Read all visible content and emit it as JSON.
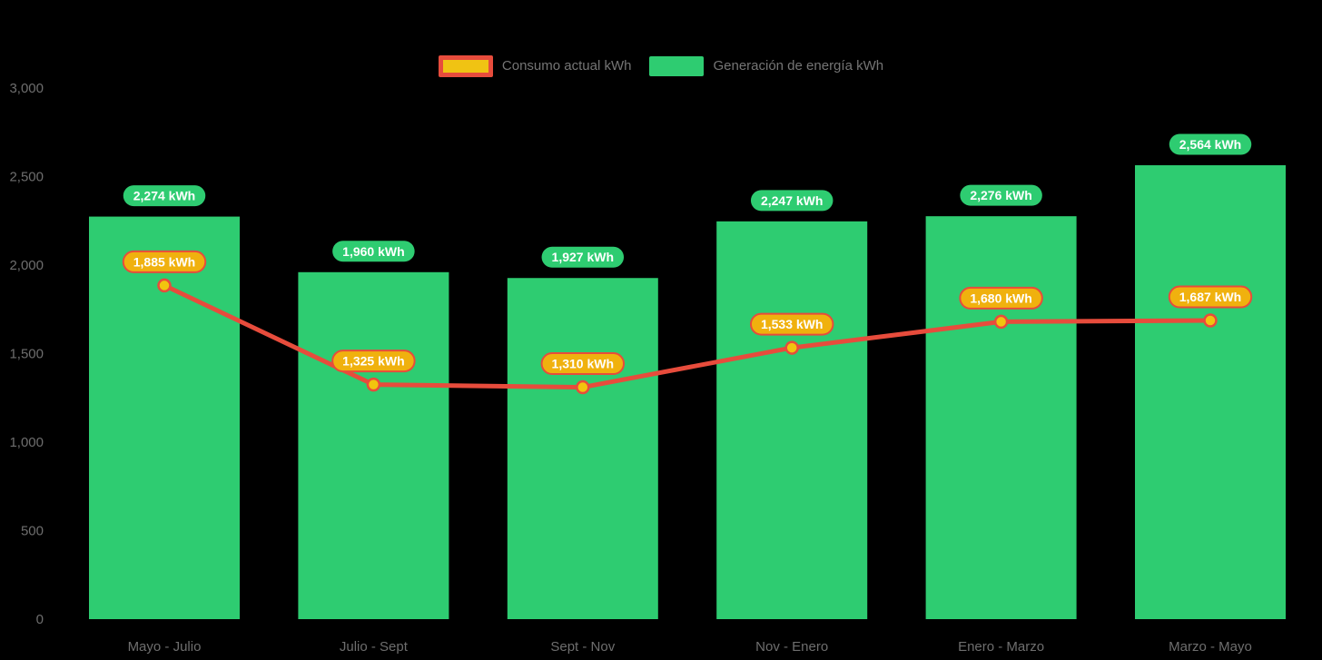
{
  "legend": {
    "items": [
      {
        "label": "Consumo actual kWh",
        "series_type": "line",
        "swatch_fill": "#F0C313",
        "swatch_border": "#E74C3C"
      },
      {
        "label": "Generación de energía kWh",
        "series_type": "bar",
        "swatch_fill": "#2ECC71"
      }
    ]
  },
  "chart_data": {
    "type": "combo",
    "categories": [
      "Mayo - Julio",
      "Julio - Sept",
      "Sept - Nov",
      "Nov - Enero",
      "Enero - Marzo",
      "Marzo - Mayo"
    ],
    "series": [
      {
        "name": "Generación de energía kWh",
        "type": "bar",
        "color": "#2ECC71",
        "values": [
          2274,
          1960,
          1927,
          2247,
          2276,
          2564
        ],
        "data_label_fill": "#2ECC71",
        "data_label_text_color": "#FFFFFF"
      },
      {
        "name": "Consumo actual kWh",
        "type": "line",
        "color": "#E74C3C",
        "marker_fill": "#F2C40E",
        "marker_stroke": "#E74C3C",
        "values": [
          1885,
          1325,
          1310,
          1533,
          1680,
          1687
        ],
        "data_label_fill": "#F0B10E",
        "data_label_border": "#E74C3C",
        "data_label_text_color": "#FFFFFF"
      }
    ],
    "unit": "kWh",
    "yticks": [
      0,
      500,
      1000,
      1500,
      2000,
      2500,
      3000
    ],
    "ylim": [
      0,
      3000
    ],
    "grid": false,
    "legend_position": "top",
    "background": "#000000",
    "axis_label_color": "#6E6E6E"
  }
}
